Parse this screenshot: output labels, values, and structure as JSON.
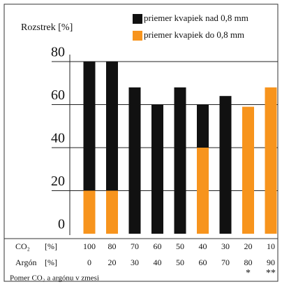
{
  "chart_data": {
    "type": "stacked_bar",
    "title": "Rozstrek [%]",
    "categories": [
      "100",
      "80",
      "70",
      "60",
      "50",
      "40",
      "30",
      "20",
      "10"
    ],
    "argon_categories": [
      "0",
      "20",
      "30",
      "40",
      "50",
      "60",
      "70",
      "80",
      "90"
    ],
    "row_labels": [
      {
        "name": "CO₂",
        "unit": "[%]"
      },
      {
        "name": "Argón",
        "unit": "[%]"
      }
    ],
    "annotations": [
      null,
      null,
      null,
      null,
      null,
      null,
      null,
      "*",
      "**"
    ],
    "xlabel": "Pomer CO₂ a argónu v zmesi",
    "series": [
      {
        "name": "priemer kvapiek do 0,8 mm",
        "color": "#f7941d",
        "values": [
          20,
          20,
          0,
          0,
          0,
          40,
          0,
          59,
          68
        ]
      },
      {
        "name": "priemer kvapiek nad 0,8 mm",
        "color": "#111111",
        "values": [
          60,
          60,
          68,
          60,
          68,
          20,
          64,
          0,
          0
        ]
      }
    ],
    "ylim": [
      0,
      80
    ],
    "yticks": [
      0,
      20,
      40,
      60,
      80
    ],
    "grid": true
  }
}
